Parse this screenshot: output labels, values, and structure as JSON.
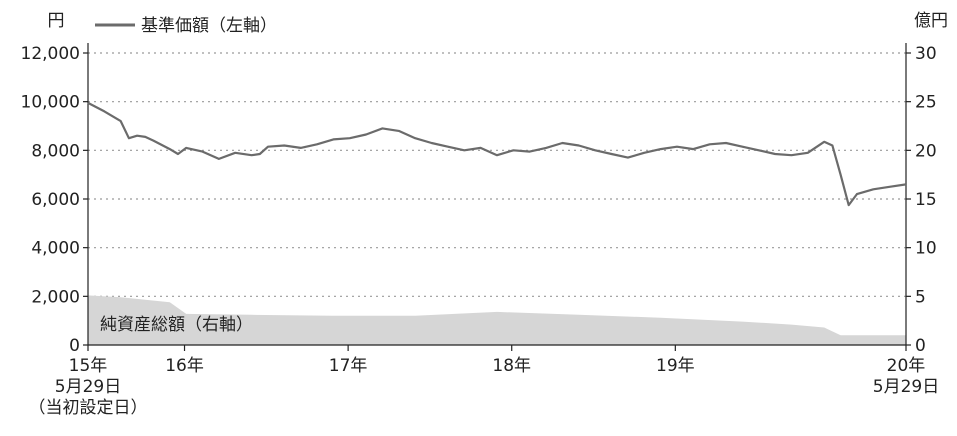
{
  "chart_data": {
    "type": "line",
    "left_axis": {
      "unit": "円",
      "ylim": [
        0,
        12000
      ],
      "ticks": [
        "12,000",
        "10,000",
        "8,000",
        "6,000",
        "4,000",
        "2,000",
        "0"
      ]
    },
    "right_axis": {
      "unit": "億円",
      "ylim": [
        0,
        30
      ],
      "ticks": [
        "30",
        "25",
        "20",
        "15",
        "10",
        "5",
        "0"
      ]
    },
    "x_labels": [
      {
        "lines": [
          "15年",
          "5月29日",
          "（当初設定日）"
        ],
        "t": 0
      },
      {
        "lines": [
          "16年"
        ],
        "t": 0.59
      },
      {
        "lines": [
          "17年"
        ],
        "t": 1.59
      },
      {
        "lines": [
          "18年"
        ],
        "t": 2.59
      },
      {
        "lines": [
          "19年"
        ],
        "t": 3.59
      },
      {
        "lines": [
          "20年",
          "5月29日"
        ],
        "t": 5.0
      }
    ],
    "grid": true,
    "legend_position": "top-left",
    "series": [
      {
        "name": "基準価額（左軸）",
        "axis": "left",
        "style": "line",
        "color": "#6b6b6b",
        "x": [
          0,
          0.1,
          0.2,
          0.25,
          0.3,
          0.35,
          0.4,
          0.5,
          0.55,
          0.6,
          0.7,
          0.8,
          0.9,
          1.0,
          1.05,
          1.1,
          1.2,
          1.3,
          1.4,
          1.5,
          1.6,
          1.7,
          1.8,
          1.9,
          2.0,
          2.1,
          2.2,
          2.3,
          2.4,
          2.5,
          2.6,
          2.7,
          2.8,
          2.9,
          3.0,
          3.1,
          3.2,
          3.3,
          3.4,
          3.5,
          3.6,
          3.7,
          3.8,
          3.9,
          4.0,
          4.1,
          4.2,
          4.3,
          4.4,
          4.5,
          4.55,
          4.6,
          4.65,
          4.7,
          4.8,
          4.9,
          5.0
        ],
        "values": [
          9950,
          9600,
          9200,
          8500,
          8600,
          8550,
          8400,
          8050,
          7850,
          8100,
          7950,
          7650,
          7900,
          7800,
          7850,
          8150,
          8200,
          8100,
          8250,
          8450,
          8500,
          8650,
          8900,
          8800,
          8500,
          8300,
          8150,
          8000,
          8100,
          7800,
          8000,
          7950,
          8100,
          8300,
          8200,
          8000,
          7850,
          7700,
          7900,
          8050,
          8150,
          8050,
          8250,
          8300,
          8150,
          8000,
          7850,
          7800,
          7900,
          8350,
          8200,
          7000,
          5750,
          6200,
          6400,
          6500,
          6600
        ]
      },
      {
        "name": "純資産総額（右軸）",
        "axis": "right",
        "style": "area",
        "color": "#d6d6d6",
        "x": [
          0,
          0.2,
          0.5,
          0.6,
          1.0,
          1.5,
          2.0,
          2.5,
          3.0,
          3.5,
          4.0,
          4.3,
          4.5,
          4.6,
          4.7,
          5.0
        ],
        "values": [
          5.1,
          4.9,
          4.4,
          3.2,
          3.1,
          3.0,
          3.0,
          3.4,
          3.1,
          2.8,
          2.4,
          2.1,
          1.8,
          1.0,
          1.0,
          1.0
        ]
      }
    ]
  }
}
